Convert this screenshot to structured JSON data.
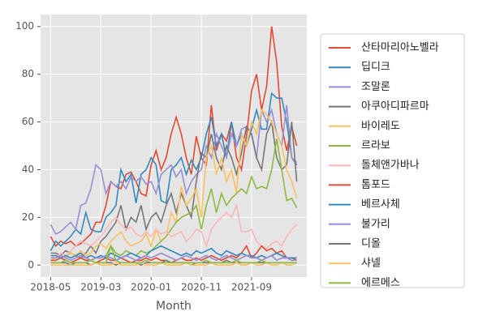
{
  "chart_data": {
    "type": "line",
    "xlabel": "Month",
    "x": [
      "2018-05",
      "2018-06",
      "2018-07",
      "2018-08",
      "2018-09",
      "2018-10",
      "2018-11",
      "2018-12",
      "2019-01",
      "2019-02",
      "2019-03",
      "2019-04",
      "2019-05",
      "2019-06",
      "2019-07",
      "2019-08",
      "2019-09",
      "2019-10",
      "2019-11",
      "2019-12",
      "2020-01",
      "2020-02",
      "2020-03",
      "2020-04",
      "2020-05",
      "2020-06",
      "2020-07",
      "2020-08",
      "2020-09",
      "2020-10",
      "2020-11",
      "2020-12",
      "2021-01",
      "2021-02",
      "2021-03",
      "2021-04",
      "2021-05",
      "2021-06",
      "2021-07",
      "2021-08",
      "2021-09",
      "2021-10",
      "2021-11",
      "2021-12",
      "2022-01",
      "2022-02",
      "2022-03",
      "2022-04",
      "2022-05",
      "2022-06"
    ],
    "xlim": [
      "2018-03",
      "2022-08"
    ],
    "xticks": [
      "2018-05",
      "2019-03",
      "2020-01",
      "2020-11",
      "2021-09"
    ],
    "ylim": [
      -5,
      105
    ],
    "yticks": [
      0,
      20,
      40,
      60,
      80,
      100
    ],
    "grid": true,
    "legend": "right",
    "series": [
      {
        "name": "산타마리아노벨라",
        "color": "#E24A33",
        "values": [
          12,
          8,
          10,
          9,
          10,
          8,
          9,
          11,
          13,
          18,
          18,
          25,
          35,
          33,
          32,
          38,
          39,
          35,
          30,
          29,
          42,
          48,
          40,
          45,
          55,
          62,
          55,
          45,
          38,
          54,
          45,
          42,
          67,
          48,
          55,
          52,
          60,
          45,
          40,
          54,
          73,
          80,
          65,
          75,
          100,
          85,
          58,
          48,
          58,
          50
        ]
      },
      {
        "name": "딥디크",
        "color": "#348ABD",
        "values": [
          6,
          10,
          8,
          10,
          12,
          15,
          13,
          22,
          15,
          14,
          14,
          20,
          22,
          25,
          40,
          35,
          38,
          26,
          38,
          40,
          45,
          42,
          27,
          26,
          40,
          42,
          45,
          38,
          44,
          40,
          45,
          55,
          62,
          50,
          55,
          45,
          60,
          50,
          55,
          50,
          57,
          65,
          57,
          57,
          72,
          70,
          70,
          60,
          45,
          42
        ]
      },
      {
        "name": "조말론",
        "color": "#988ED5",
        "values": [
          17,
          13,
          14,
          16,
          18,
          15,
          25,
          26,
          32,
          42,
          40,
          30,
          35,
          33,
          35,
          32,
          37,
          35,
          37,
          34,
          35,
          30,
          38,
          40,
          42,
          37,
          40,
          30,
          35,
          38,
          40,
          50,
          45,
          55,
          50,
          45,
          55,
          50,
          57,
          58,
          55,
          45,
          65,
          60,
          65,
          55,
          50,
          67,
          45,
          43
        ]
      },
      {
        "name": "아쿠아디파르마",
        "color": "#777777",
        "values": [
          5,
          5,
          4,
          6,
          5,
          4,
          3,
          5,
          8,
          5,
          10,
          12,
          15,
          18,
          25,
          15,
          20,
          18,
          25,
          15,
          20,
          22,
          18,
          25,
          30,
          22,
          30,
          25,
          20,
          35,
          47,
          45,
          55,
          45,
          40,
          50,
          45,
          38,
          47,
          58,
          55,
          45,
          40,
          55,
          60,
          45,
          40,
          42,
          60,
          35
        ]
      },
      {
        "name": "바이레도",
        "color": "#FBC15E",
        "values": [
          2,
          3,
          4,
          3,
          5,
          4,
          6,
          4,
          5,
          8,
          9,
          7,
          10,
          12,
          14,
          10,
          8,
          9,
          10,
          13,
          8,
          15,
          10,
          12,
          22,
          18,
          33,
          25,
          28,
          32,
          20,
          45,
          50,
          38,
          45,
          35,
          40,
          30,
          55,
          50,
          60,
          55,
          65,
          63,
          60,
          55,
          50,
          40,
          35,
          28
        ]
      },
      {
        "name": "르라보",
        "color": "#8EBA42",
        "values": [
          1,
          1,
          1,
          2,
          1,
          2,
          3,
          2,
          2,
          3,
          3,
          4,
          8,
          5,
          4,
          6,
          5,
          4,
          6,
          5,
          6,
          8,
          10,
          12,
          15,
          18,
          20,
          21,
          22,
          25,
          15,
          25,
          32,
          22,
          30,
          25,
          28,
          30,
          32,
          30,
          37,
          32,
          33,
          32,
          40,
          53,
          40,
          27,
          28,
          24
        ]
      },
      {
        "name": "돌체앤가바나",
        "color": "#FFB5B8",
        "values": [
          4,
          3,
          5,
          4,
          6,
          8,
          10,
          9,
          8,
          10,
          12,
          15,
          18,
          20,
          17,
          15,
          16,
          13,
          12,
          14,
          12,
          15,
          13,
          14,
          12,
          13,
          14,
          10,
          12,
          15,
          14,
          8,
          15,
          18,
          20,
          22,
          20,
          25,
          14,
          14,
          15,
          10,
          8,
          7,
          9,
          10,
          8,
          12,
          15,
          17
        ]
      },
      {
        "name": "톰포드",
        "color": "#E24A33",
        "values": [
          2,
          2,
          3,
          2,
          1,
          2,
          3,
          2,
          2,
          1,
          2,
          3,
          2,
          2,
          3,
          2,
          1,
          2,
          2,
          3,
          2,
          3,
          2,
          2,
          1,
          2,
          3,
          2,
          2,
          3,
          2,
          3,
          4,
          3,
          2,
          3,
          4,
          3,
          5,
          8,
          3,
          5,
          8,
          6,
          7,
          5,
          6,
          3,
          3,
          2
        ]
      },
      {
        "name": "베르사체",
        "color": "#348ABD",
        "values": [
          4,
          4,
          3,
          4,
          3,
          4,
          5,
          3,
          4,
          3,
          4,
          3,
          5,
          4,
          3,
          4,
          5,
          4,
          3,
          4,
          6,
          7,
          8,
          7,
          6,
          5,
          4,
          5,
          4,
          6,
          5,
          6,
          7,
          5,
          4,
          6,
          5,
          4,
          5,
          4,
          4,
          3,
          4,
          3,
          4,
          5,
          4,
          3,
          3,
          3
        ]
      },
      {
        "name": "불가리",
        "color": "#988ED5",
        "values": [
          3,
          3,
          4,
          3,
          2,
          3,
          4,
          3,
          2,
          3,
          3,
          4,
          3,
          2,
          3,
          4,
          3,
          2,
          3,
          4,
          3,
          4,
          5,
          4,
          3,
          2,
          3,
          4,
          3,
          2,
          3,
          4,
          3,
          2,
          3,
          4,
          3,
          2,
          3,
          4,
          3,
          3,
          2,
          3,
          4,
          2,
          3,
          3,
          2,
          2
        ]
      },
      {
        "name": "디올",
        "color": "#777777",
        "values": [
          1,
          1,
          1,
          1,
          0,
          1,
          1,
          1,
          0,
          1,
          1,
          1,
          1,
          0,
          1,
          1,
          1,
          1,
          0,
          1,
          1,
          1,
          1,
          2,
          1,
          1,
          1,
          1,
          0,
          1,
          1,
          1,
          1,
          1,
          1,
          2,
          1,
          1,
          1,
          1,
          1,
          1,
          1,
          1,
          1,
          1,
          1,
          1,
          1,
          1
        ]
      },
      {
        "name": "샤넬",
        "color": "#FBC15E",
        "values": [
          0,
          0,
          0,
          0,
          0,
          0,
          0,
          0,
          0,
          1,
          0,
          0,
          0,
          1,
          0,
          0,
          0,
          0,
          1,
          0,
          0,
          0,
          1,
          0,
          0,
          0,
          0,
          1,
          0,
          0,
          0,
          0,
          1,
          0,
          0,
          0,
          0,
          1,
          0,
          0,
          1,
          0,
          0,
          1,
          0,
          0,
          1,
          0,
          0,
          1
        ]
      },
      {
        "name": "에르메스",
        "color": "#8EBA42",
        "values": [
          1,
          1,
          1,
          2,
          1,
          1,
          1,
          1,
          2,
          1,
          1,
          1,
          8,
          2,
          1,
          1,
          1,
          1,
          1,
          2,
          1,
          1,
          1,
          1,
          1,
          1,
          1,
          1,
          1,
          1,
          1,
          2,
          1,
          1,
          1,
          1,
          1,
          2,
          1,
          1,
          1,
          1,
          2,
          1,
          1,
          1,
          1,
          1,
          1,
          1
        ]
      }
    ]
  }
}
